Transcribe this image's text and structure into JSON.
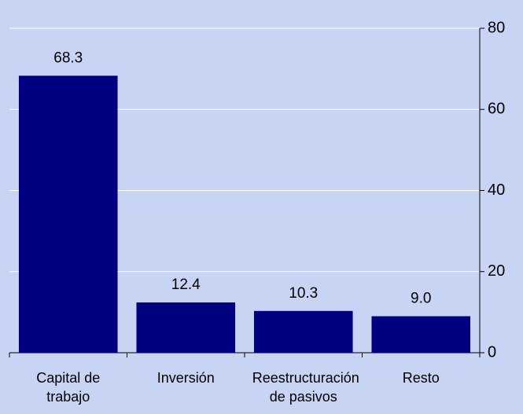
{
  "chart_data": {
    "type": "bar",
    "categories": [
      "Capital de trabajo",
      "Inversión",
      "Reestructuración de pasivos",
      "Resto"
    ],
    "values": [
      68.3,
      12.4,
      10.3,
      9.0
    ],
    "value_labels": [
      "68.3",
      "12.4",
      "10.3",
      "9.0"
    ],
    "color": "#000080",
    "ylim": [
      0,
      80
    ],
    "yticks": [
      0,
      20,
      40,
      60,
      80
    ],
    "grid": true
  }
}
